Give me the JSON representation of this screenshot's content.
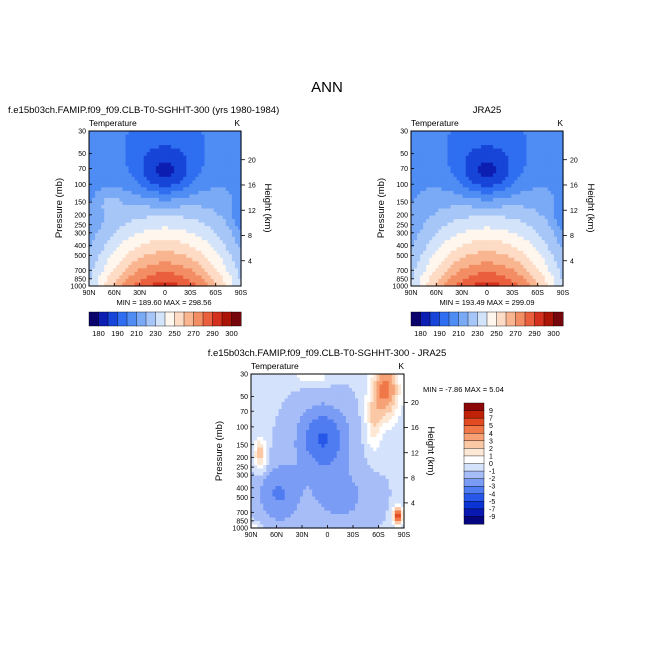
{
  "figure": {
    "title": "ANN"
  },
  "colors": {
    "abs_palette": [
      "#09036b",
      "#0c1fb2",
      "#1645d8",
      "#2f6ef0",
      "#4f8df4",
      "#7aaaf5",
      "#a7c6f8",
      "#d3e3fa",
      "#fff6ee",
      "#fddbc5",
      "#f9b590",
      "#f38d63",
      "#ea5f3e",
      "#d3301e",
      "#ab1508",
      "#75060b"
    ],
    "diff_palette": [
      "#050580",
      "#0818b0",
      "#0b34d4",
      "#2657e8",
      "#4f7cf0",
      "#7a9cf5",
      "#a6bdf8",
      "#d5e2fb",
      "#ffffff",
      "#fde8d6",
      "#fbc8a6",
      "#f6a276",
      "#f07848",
      "#e24a22",
      "#c02208",
      "#8c0808"
    ]
  },
  "chart_data": [
    {
      "type": "heatmap",
      "title": "f.e15b03ch.FAMIP.f09_f09.CLB-T0-SGHHT-300 (yrs 1980-1984)",
      "subtitle": "Temperature",
      "units": "K",
      "ylabel": "Pressure (mb)",
      "ylabel_right": "Height (km)",
      "x_ticks": [
        "90N",
        "60N",
        "30N",
        "0",
        "30S",
        "60S",
        "90S"
      ],
      "y_ticks": [
        "30",
        "50",
        "70",
        "100",
        "150",
        "200",
        "250",
        "300",
        "400",
        "500",
        "700",
        "850",
        "1000"
      ],
      "right_ticks": [
        "20",
        "16",
        "12",
        "8",
        "4"
      ],
      "stats_text": "MIN = 189.60   MAX = 298.56",
      "min": 189.6,
      "max": 298.56,
      "colorbar_labels": [
        "180",
        "190",
        "210",
        "230",
        "250",
        "270",
        "290",
        "300"
      ]
    },
    {
      "type": "heatmap",
      "title": "JRA25",
      "subtitle": "Temperature",
      "units": "K",
      "ylabel": "Pressure (mb)",
      "ylabel_right": "Height (km)",
      "x_ticks": [
        "90N",
        "60N",
        "30N",
        "0",
        "30S",
        "60S",
        "90S"
      ],
      "y_ticks": [
        "30",
        "50",
        "70",
        "100",
        "150",
        "200",
        "250",
        "300",
        "400",
        "500",
        "700",
        "850",
        "1000"
      ],
      "right_ticks": [
        "20",
        "16",
        "12",
        "8",
        "4"
      ],
      "stats_text": "MIN = 193.49   MAX = 299.09",
      "min": 193.49,
      "max": 299.09,
      "colorbar_labels": [
        "180",
        "190",
        "210",
        "230",
        "250",
        "270",
        "290",
        "300"
      ]
    },
    {
      "type": "heatmap",
      "title": "f.e15b03ch.FAMIP.f09_f09.CLB-T0-SGHHT-300 - JRA25",
      "subtitle": "Temperature",
      "units": "K",
      "ylabel": "Pressure (mb)",
      "ylabel_right": "Height (km)",
      "x_ticks": [
        "90N",
        "60N",
        "30N",
        "0",
        "30S",
        "60S",
        "90S"
      ],
      "y_ticks": [
        "30",
        "50",
        "70",
        "100",
        "150",
        "200",
        "250",
        "300",
        "400",
        "500",
        "700",
        "850",
        "1000"
      ],
      "right_ticks": [
        "20",
        "16",
        "12",
        "8",
        "4"
      ],
      "stats_text": "MIN = -7.86   MAX =   5.04",
      "min": -7.86,
      "max": 5.04,
      "colorbar_labels": [
        "9",
        "7",
        "5",
        "4",
        "3",
        "2",
        "1",
        "0",
        "-1",
        "-2",
        "-3",
        "-4",
        "-5",
        "-7",
        "-9"
      ]
    }
  ]
}
